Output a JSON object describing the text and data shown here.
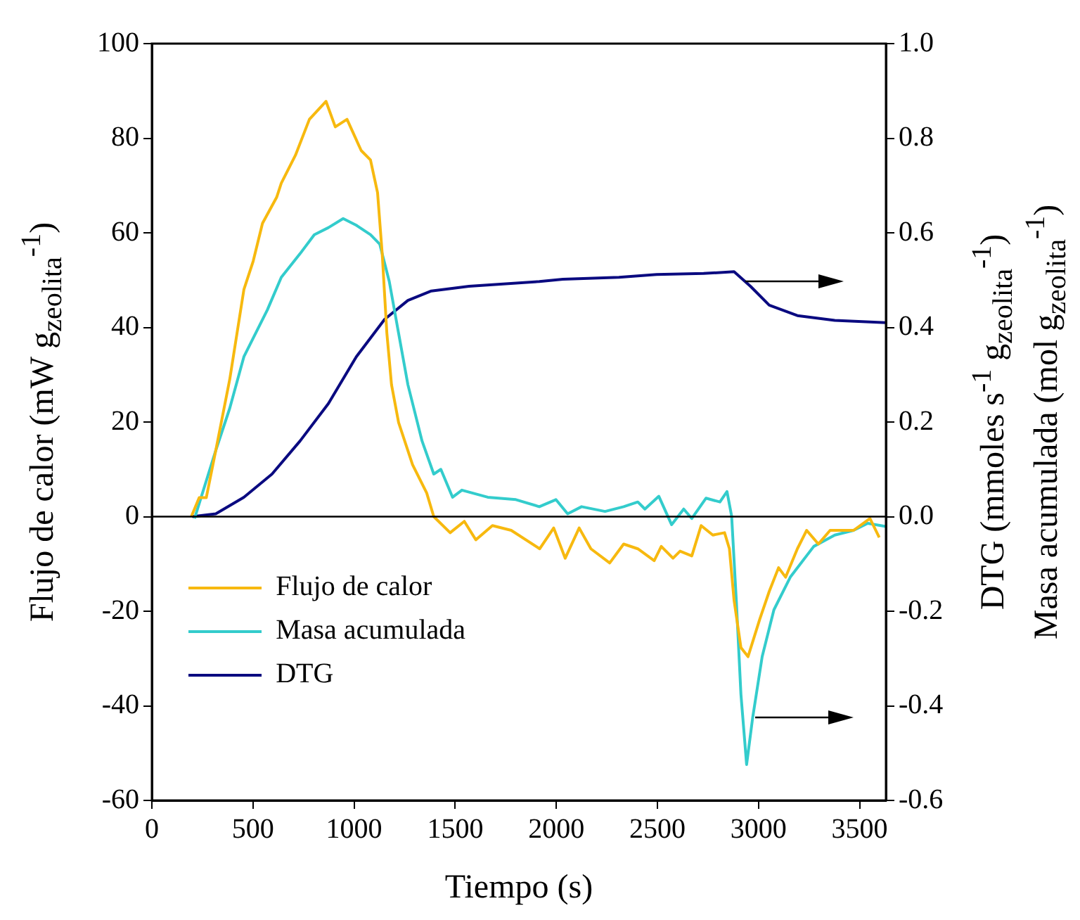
{
  "chart_data": {
    "type": "line",
    "xlabel": "Tiempo (s)",
    "ylabel": "Flujo de calor (mW g$_{zeolita}$$^{-1}$)",
    "y2label": "DTG (mmoles s$^{-1}$ g$_{zeolita}$$^{-1}$)\nMasa acumulada (mol g$_{zeolita}$$^{-1}$)",
    "xlim": [
      0,
      3630
    ],
    "xticks": [
      0,
      500,
      1000,
      1500,
      2000,
      2500,
      3000,
      3500
    ],
    "ylim": [
      -60,
      100
    ],
    "yticks": [
      -60,
      -40,
      -20,
      0,
      20,
      40,
      60,
      80,
      100
    ],
    "y2lim": [
      -0.6,
      1.0
    ],
    "y2ticks": [
      -0.6,
      -0.4,
      -0.2,
      {
        "value": 0,
        "label": "0.0"
      },
      0.2,
      0.4,
      0.6,
      0.8,
      {
        "value": 1,
        "label": "1.0"
      }
    ],
    "grid": false,
    "legend": "bottom left",
    "marker": "none",
    "line_style": "solid",
    "ref_lines": [
      {
        "axis": "y",
        "value": 0,
        "color": "#000000"
      }
    ],
    "series": [
      {
        "name": "Flujo de calor",
        "color": "#f7b90f",
        "x": [
          195,
          234,
          269,
          316,
          385,
          455,
          501,
          547,
          617,
          640,
          710,
          779,
          861,
          907,
          965,
          1035,
          1081,
          1116,
          1139,
          1162,
          1185,
          1220,
          1289,
          1359,
          1394,
          1475,
          1545,
          1602,
          1684,
          1777,
          1918,
          1987,
          2044,
          2113,
          2171,
          2264,
          2333,
          2403,
          2484,
          2519,
          2577,
          2612,
          2670,
          2716,
          2774,
          2832,
          2856,
          2879,
          2913,
          2948,
          3006,
          3053,
          3099,
          3134,
          3192,
          3238,
          3296,
          3354,
          3470,
          3551,
          3597
        ],
        "values": [
          0,
          4,
          4,
          14,
          29,
          48,
          54,
          62,
          67.5,
          70.5,
          76.4,
          84,
          87.8,
          82.4,
          84,
          77.4,
          75.4,
          68.5,
          55.6,
          38.8,
          27.9,
          19.9,
          11,
          5,
          0,
          -3.4,
          -1,
          -4.9,
          -1.9,
          -2.9,
          -6.8,
          -2.4,
          -8.8,
          -2.4,
          -6.8,
          -9.8,
          -5.8,
          -6.8,
          -9.3,
          -6.3,
          -8.8,
          -7.3,
          -8.3,
          -1.9,
          -3.9,
          -3.4,
          -6.8,
          -17.7,
          -27.7,
          -29.6,
          -21.7,
          -15.8,
          -10.8,
          -12.8,
          -6.8,
          -2.9,
          -5.8,
          -2.9,
          -2.9,
          -0.4,
          -4.4
        ]
      },
      {
        "name": "Masa acumulada",
        "color": "#33cccc",
        "axis": "y2",
        "x": [
          211,
          316,
          385,
          455,
          571,
          640,
          733,
          803,
          873,
          946,
          1011,
          1081,
          1127,
          1174,
          1220,
          1266,
          1336,
          1394,
          1429,
          1487,
          1533,
          1661,
          1800,
          1916,
          1998,
          2056,
          2125,
          2241,
          2333,
          2403,
          2438,
          2507,
          2570,
          2630,
          2670,
          2740,
          2809,
          2844,
          2867,
          2890,
          2913,
          2941,
          2971,
          3018,
          3076,
          3157,
          3273,
          3377,
          3470,
          3540,
          3630
        ],
        "values": [
          -0.004,
          0.14,
          0.229,
          0.338,
          0.437,
          0.506,
          0.556,
          0.596,
          0.611,
          0.63,
          0.616,
          0.596,
          0.576,
          0.497,
          0.388,
          0.279,
          0.16,
          0.09,
          0.1,
          0.041,
          0.056,
          0.041,
          0.036,
          0.021,
          0.036,
          0.006,
          0.021,
          0.011,
          0.021,
          0.031,
          0.016,
          0.043,
          -0.017,
          0.016,
          -0.004,
          0.039,
          0.031,
          0.053,
          0.001,
          -0.177,
          -0.376,
          -0.524,
          -0.425,
          -0.296,
          -0.197,
          -0.128,
          -0.063,
          -0.039,
          -0.029,
          -0.014,
          -0.021
        ]
      },
      {
        "name": "DTG",
        "color": "#0a0a80",
        "axis": "y2",
        "x": [
          200,
          316,
          455,
          594,
          733,
          873,
          1011,
          1151,
          1266,
          1382,
          1568,
          1916,
          2032,
          2310,
          2496,
          2728,
          2879,
          2960,
          3053,
          3192,
          3377,
          3630
        ],
        "values": [
          0,
          0.006,
          0.041,
          0.09,
          0.16,
          0.239,
          0.338,
          0.417,
          0.457,
          0.477,
          0.487,
          0.497,
          0.502,
          0.506,
          0.512,
          0.514,
          0.518,
          0.487,
          0.447,
          0.425,
          0.415,
          0.41
        ]
      }
    ]
  }
}
